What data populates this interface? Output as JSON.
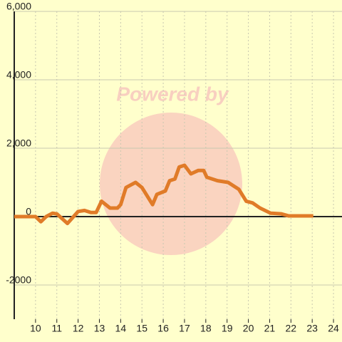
{
  "chart_data": {
    "type": "line",
    "watermark": "Powered by",
    "x": [
      9,
      10,
      10.25,
      10.5,
      10.8,
      11,
      11.5,
      12,
      12.3,
      12.6,
      12.85,
      13.1,
      13.5,
      13.85,
      14,
      14.25,
      14.7,
      15,
      15.5,
      15.7,
      16.1,
      16.3,
      16.55,
      16.75,
      17,
      17.3,
      17.65,
      17.9,
      18.05,
      18.55,
      19.05,
      19.55,
      19.9,
      20.2,
      20.55,
      21.05,
      21.55,
      21.9,
      23.05
    ],
    "series": [
      {
        "color": "#e07b28",
        "values": [
          0,
          0,
          -150,
          0,
          100,
          80,
          -200,
          150,
          180,
          120,
          120,
          450,
          250,
          250,
          350,
          850,
          1000,
          850,
          350,
          650,
          750,
          1050,
          1100,
          1450,
          1500,
          1250,
          1350,
          1350,
          1150,
          1050,
          1000,
          800,
          450,
          400,
          250,
          100,
          80,
          20,
          20
        ]
      }
    ],
    "xlim": [
      9,
      24.4
    ],
    "xticks": [
      10,
      11,
      12,
      13,
      14,
      15,
      16,
      17,
      18,
      19,
      20,
      21,
      22,
      23,
      24
    ],
    "ylim": [
      -3000,
      6000
    ],
    "yticks": [
      -2000,
      0,
      {
        "value": 2000,
        "label": "2,000"
      },
      {
        "value": 4000,
        "label": "4,000"
      },
      {
        "value": 6000,
        "label": "6,000"
      }
    ],
    "grid": true
  }
}
